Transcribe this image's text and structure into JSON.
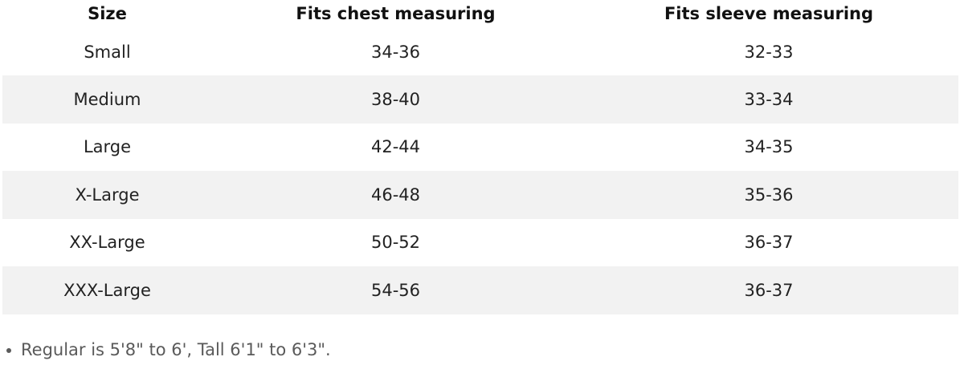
{
  "table": {
    "headers": [
      "Size",
      "Fits chest measuring",
      "Fits sleeve measuring"
    ],
    "rows": [
      {
        "size": "Small",
        "chest": "34-36",
        "sleeve": "32-33"
      },
      {
        "size": "Medium",
        "chest": "38-40",
        "sleeve": "33-34"
      },
      {
        "size": "Large",
        "chest": "42-44",
        "sleeve": "34-35"
      },
      {
        "size": "X-Large",
        "chest": "46-48",
        "sleeve": "35-36"
      },
      {
        "size": "XX-Large",
        "chest": "50-52",
        "sleeve": "36-37"
      },
      {
        "size": "XXX-Large",
        "chest": "54-56",
        "sleeve": "36-37"
      }
    ],
    "stripe_color": "#f2f2f2"
  },
  "notes": [
    "Regular is 5'8\" to 6', Tall 6'1\" to 6'3\"."
  ]
}
